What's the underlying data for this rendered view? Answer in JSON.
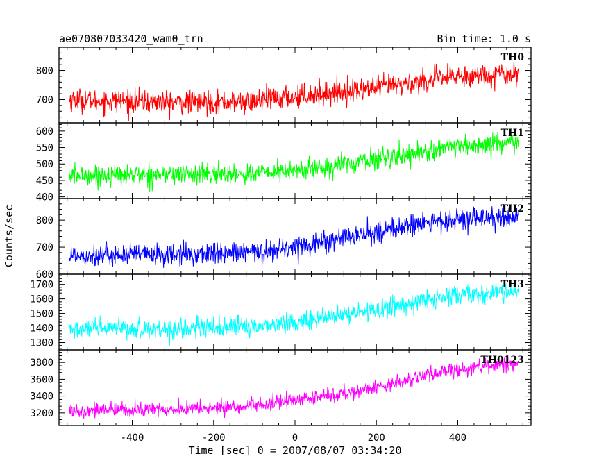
{
  "chart_data": {
    "type": "line",
    "title": "ae070807033420_wam0_trn",
    "subtitle": "Bin time: 1.0 s",
    "xlabel": "Time [sec] 0 = 2007/08/07 03:34:20",
    "ylabel": "Counts/sec",
    "xlim": [
      -580,
      580
    ],
    "xticks": [
      -400,
      -200,
      0,
      200,
      400
    ],
    "x_start": -555,
    "x_end": 550,
    "x_step": 1,
    "grid": false,
    "legend": "none",
    "series": [
      {
        "name": "TH0",
        "color": "#ff0000",
        "ylim": [
          620,
          880
        ],
        "yticks": [
          700,
          800
        ],
        "trend": [
          [
            -555,
            700
          ],
          [
            -300,
            690
          ],
          [
            -100,
            693
          ],
          [
            0,
            710
          ],
          [
            200,
            740
          ],
          [
            300,
            760
          ],
          [
            400,
            780
          ],
          [
            550,
            790
          ]
        ],
        "noise": 32
      },
      {
        "name": "TH1",
        "color": "#00ff00",
        "ylim": [
          395,
          625
        ],
        "yticks": [
          400,
          450,
          500,
          550,
          600
        ],
        "trend": [
          [
            -555,
            465
          ],
          [
            -300,
            468
          ],
          [
            -100,
            470
          ],
          [
            0,
            480
          ],
          [
            150,
            505
          ],
          [
            300,
            535
          ],
          [
            400,
            550
          ],
          [
            550,
            565
          ]
        ],
        "noise": 25
      },
      {
        "name": "TH2",
        "color": "#0000ff",
        "ylim": [
          600,
          880
        ],
        "yticks": [
          600,
          700,
          800
        ],
        "trend": [
          [
            -555,
            670
          ],
          [
            -300,
            672
          ],
          [
            -100,
            680
          ],
          [
            0,
            700
          ],
          [
            150,
            740
          ],
          [
            300,
            785
          ],
          [
            400,
            800
          ],
          [
            550,
            810
          ]
        ],
        "noise": 33
      },
      {
        "name": "TH3",
        "color": "#00ffff",
        "ylim": [
          1250,
          1770
        ],
        "yticks": [
          1300,
          1400,
          1500,
          1600,
          1700
        ],
        "trend": [
          [
            -555,
            1390
          ],
          [
            -300,
            1395
          ],
          [
            -100,
            1410
          ],
          [
            0,
            1440
          ],
          [
            150,
            1500
          ],
          [
            300,
            1580
          ],
          [
            400,
            1620
          ],
          [
            550,
            1650
          ]
        ],
        "noise": 55
      },
      {
        "name": "TH0123",
        "color": "#ff00ff",
        "ylim": [
          3050,
          3950
        ],
        "yticks": [
          3200,
          3400,
          3600,
          3800
        ],
        "trend": [
          [
            -555,
            3230
          ],
          [
            -300,
            3240
          ],
          [
            -100,
            3280
          ],
          [
            0,
            3350
          ],
          [
            150,
            3450
          ],
          [
            300,
            3620
          ],
          [
            400,
            3720
          ],
          [
            550,
            3790
          ]
        ],
        "noise": 70
      }
    ]
  }
}
